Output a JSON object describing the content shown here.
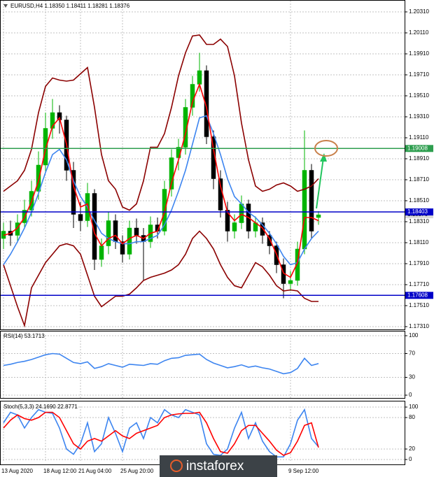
{
  "chart_data": [
    {
      "type": "candlestick",
      "title": "EURUSD,H4  1.18350 1.18411 1.18281 1.18376",
      "categories": [
        "13 Aug 2020",
        null,
        null,
        null,
        null,
        null,
        "18 Aug 12:00",
        null,
        null,
        null,
        null,
        "21 Aug 04:00",
        null,
        null,
        null,
        null,
        null,
        "25 Aug 20:00",
        null,
        null,
        null,
        null,
        null,
        null,
        null,
        null,
        null,
        null,
        null,
        null,
        null,
        null,
        null,
        null,
        null,
        null,
        null,
        null,
        null,
        null,
        null,
        "9 Sep 12:00",
        null,
        null,
        null,
        null
      ],
      "open": [
        1.1815,
        1.1822,
        1.1818,
        1.183,
        1.1842,
        1.186,
        1.1885,
        1.192,
        1.1935,
        1.1928,
        1.188,
        1.1838,
        1.1832,
        1.1858,
        1.1795,
        1.1808,
        1.1832,
        1.1812,
        1.18,
        1.1825,
        1.1818,
        1.1812,
        1.1828,
        1.1822,
        1.1862,
        1.1892,
        1.1902,
        1.194,
        1.1962,
        1.1975,
        1.1912,
        1.1872,
        1.1842,
        1.1822,
        1.183,
        1.1848,
        1.1822,
        1.183,
        1.1818,
        1.1808,
        1.179,
        1.1772,
        1.1775,
        1.1805,
        1.188,
        1.1835
      ],
      "high": [
        1.183,
        1.1832,
        1.1838,
        1.1852,
        1.187,
        1.1898,
        1.1935,
        1.1948,
        1.1942,
        1.1932,
        1.1888,
        1.185,
        1.1868,
        1.1862,
        1.1815,
        1.184,
        1.1838,
        1.1818,
        1.1832,
        1.1834,
        1.1825,
        1.1836,
        1.1835,
        1.187,
        1.19,
        1.191,
        1.1948,
        1.197,
        1.1992,
        1.198,
        1.1918,
        1.188,
        1.185,
        1.1838,
        1.1856,
        1.1852,
        1.1836,
        1.1835,
        1.1822,
        1.1812,
        1.1796,
        1.1784,
        1.1812,
        1.1918,
        1.1886,
        1.18411
      ],
      "low": [
        1.1805,
        1.1808,
        1.1812,
        1.1825,
        1.1836,
        1.1852,
        1.1878,
        1.191,
        1.1915,
        1.187,
        1.1825,
        1.1822,
        1.1826,
        1.1785,
        1.1788,
        1.18,
        1.1805,
        1.1792,
        1.1795,
        1.181,
        1.1775,
        1.1806,
        1.1815,
        1.1818,
        1.1855,
        1.188,
        1.1895,
        1.1932,
        1.1955,
        1.1905,
        1.1862,
        1.1835,
        1.1812,
        1.1815,
        1.1824,
        1.1815,
        1.1816,
        1.181,
        1.18,
        1.1782,
        1.1758,
        1.1765,
        1.177,
        1.18,
        1.1815,
        1.18281
      ],
      "close": [
        1.1822,
        1.1818,
        1.183,
        1.1842,
        1.186,
        1.1885,
        1.192,
        1.1935,
        1.1928,
        1.188,
        1.1838,
        1.1832,
        1.1858,
        1.1795,
        1.1808,
        1.1832,
        1.1812,
        1.18,
        1.1825,
        1.1818,
        1.1812,
        1.1828,
        1.1822,
        1.1862,
        1.1892,
        1.1902,
        1.194,
        1.1962,
        1.1975,
        1.1912,
        1.1872,
        1.1842,
        1.1822,
        1.183,
        1.1848,
        1.1822,
        1.183,
        1.1818,
        1.1808,
        1.179,
        1.1772,
        1.1775,
        1.1805,
        1.188,
        1.1822,
        1.18376
      ],
      "up_color": "#00b400",
      "down_color": "#000000",
      "lines": [
        {
          "color": "#8b0000",
          "values": [
            1.186,
            1.1865,
            1.187,
            1.188,
            1.19,
            1.1935,
            1.196,
            1.1968,
            1.1966,
            1.1965,
            1.1966,
            1.1972,
            1.1978,
            1.194,
            1.1895,
            1.187,
            1.1862,
            1.1845,
            1.1842,
            1.1848,
            1.187,
            1.1902,
            1.1902,
            1.1915,
            1.194,
            1.197,
            1.1992,
            1.2008,
            1.2009,
            1.2,
            1.2,
            1.2005,
            1.1998,
            1.197,
            1.1925,
            1.189,
            1.1865,
            1.186,
            1.1862,
            1.1866,
            1.1868,
            1.1865,
            1.186,
            1.1862,
            1.1865,
            1.1872
          ]
        },
        {
          "color": "#8b0000",
          "values": [
            1.179,
            1.177,
            1.175,
            1.1732,
            1.1768,
            1.178,
            1.1792,
            1.18,
            1.1808,
            1.181,
            1.1808,
            1.18,
            1.178,
            1.176,
            1.175,
            1.1755,
            1.176,
            1.176,
            1.1762,
            1.1768,
            1.1775,
            1.1778,
            1.178,
            1.1782,
            1.1785,
            1.179,
            1.18,
            1.1815,
            1.1822,
            1.1815,
            1.1805,
            1.179,
            1.1778,
            1.177,
            1.1768,
            1.178,
            1.1792,
            1.1788,
            1.178,
            1.177,
            1.1765,
            1.1766,
            1.1765,
            1.1758,
            1.1755,
            1.1755
          ]
        },
        {
          "color": "#3d85f0",
          "values": [
            1.179,
            1.18,
            1.1812,
            1.1825,
            1.184,
            1.1858,
            1.1878,
            1.1895,
            1.19,
            1.189,
            1.187,
            1.1855,
            1.1845,
            1.1832,
            1.182,
            1.1815,
            1.1812,
            1.181,
            1.181,
            1.1812,
            1.1812,
            1.1815,
            1.1818,
            1.1828,
            1.1842,
            1.186,
            1.188,
            1.1905,
            1.193,
            1.1932,
            1.1915,
            1.1895,
            1.1872,
            1.1855,
            1.1848,
            1.184,
            1.1835,
            1.1828,
            1.182,
            1.181,
            1.1798,
            1.179,
            1.1792,
            1.1805,
            1.1815,
            1.1822
          ]
        },
        {
          "color": "#ff0000",
          "values": [
            1.1818,
            1.182,
            1.1825,
            1.1835,
            1.185,
            1.187,
            1.19,
            1.1922,
            1.193,
            1.1905,
            1.1865,
            1.1845,
            1.1848,
            1.182,
            1.1808,
            1.1815,
            1.1818,
            1.181,
            1.1815,
            1.1818,
            1.1815,
            1.182,
            1.1822,
            1.184,
            1.1868,
            1.189,
            1.1915,
            1.1945,
            1.1962,
            1.194,
            1.19,
            1.1865,
            1.184,
            1.1832,
            1.1838,
            1.1835,
            1.183,
            1.1825,
            1.1815,
            1.18,
            1.1782,
            1.1778,
            1.1792,
            1.1835,
            1.1835,
            1.1832
          ]
        }
      ],
      "hlines": [
        {
          "value": 1.19008,
          "color": "#2e9e4f"
        },
        {
          "value": 1.18403,
          "color": "#0000c8"
        },
        {
          "value": 1.17608,
          "color": "#0000c8"
        }
      ],
      "last_price": 1.18376,
      "ylim": [
        1.1729,
        1.2041
      ],
      "yticks": [
        {
          "value": 1.2031,
          "label": "1.20310"
        },
        {
          "value": 1.2011,
          "label": "1.20110"
        },
        {
          "value": 1.1991,
          "label": "1.19910"
        },
        {
          "value": 1.1971,
          "label": "1.19710"
        },
        {
          "value": 1.1951,
          "label": "1.19510"
        },
        {
          "value": 1.1931,
          "label": "1.19310"
        },
        {
          "value": 1.1911,
          "label": "1.19110"
        },
        {
          "value": 1.1891,
          "label": "1.18910"
        },
        {
          "value": 1.1871,
          "label": "1.18710"
        },
        {
          "value": 1.1851,
          "label": "1.18510"
        },
        {
          "value": 1.1831,
          "label": "1.18310"
        },
        {
          "value": 1.1811,
          "label": "1.18110"
        },
        {
          "value": 1.1791,
          "label": "1.17910"
        },
        {
          "value": 1.1771,
          "label": "1.17710"
        },
        {
          "value": 1.1751,
          "label": "1.17510"
        },
        {
          "value": 1.1731,
          "label": "1.17310"
        }
      ],
      "grid": true
    },
    {
      "type": "line",
      "title": "RSI(14) 53.1713",
      "lines": [
        {
          "color": "#3d85f0",
          "values": [
            50,
            52,
            55,
            57,
            60,
            64,
            68,
            70,
            69,
            62,
            55,
            53,
            56,
            45,
            48,
            53,
            50,
            47,
            52,
            51,
            50,
            53,
            52,
            58,
            62,
            63,
            67,
            68,
            69,
            60,
            54,
            50,
            46,
            48,
            51,
            47,
            49,
            46,
            44,
            40,
            36,
            38,
            45,
            62,
            50,
            53.1713
          ]
        }
      ],
      "ylim": [
        0,
        100
      ],
      "yticks": [
        100,
        70,
        30,
        0
      ],
      "grid": true
    },
    {
      "type": "line",
      "title": "Stoch(5,3,3) 24.1690 22.8771",
      "lines": [
        {
          "color": "#3d85f0",
          "values": [
            70,
            90,
            85,
            60,
            80,
            95,
            90,
            88,
            60,
            20,
            10,
            30,
            70,
            15,
            30,
            80,
            50,
            15,
            60,
            70,
            40,
            80,
            70,
            95,
            85,
            80,
            95,
            90,
            85,
            30,
            10,
            8,
            20,
            60,
            90,
            40,
            70,
            35,
            15,
            5,
            5,
            30,
            75,
            95,
            40,
            24.169
          ]
        },
        {
          "color": "#ff0000",
          "values": [
            60,
            75,
            85,
            78,
            75,
            80,
            90,
            90,
            80,
            55,
            30,
            20,
            35,
            40,
            35,
            45,
            55,
            45,
            40,
            50,
            55,
            60,
            65,
            80,
            85,
            87,
            88,
            88,
            90,
            70,
            40,
            15,
            12,
            30,
            55,
            65,
            65,
            50,
            35,
            18,
            8,
            13,
            35,
            65,
            70,
            22.8771
          ]
        }
      ],
      "ylim": [
        0,
        100
      ],
      "yticks": [
        100,
        80,
        20,
        0
      ],
      "grid": true
    }
  ],
  "watermark": "instaforex"
}
